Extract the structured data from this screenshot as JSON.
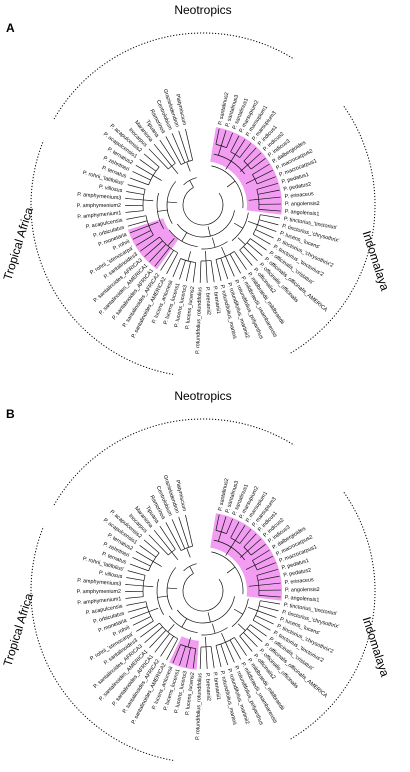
{
  "panels": [
    {
      "label": "A",
      "regions": {
        "top": "Neotropics",
        "left": "Tropical Africa",
        "right": "Indomalaya"
      },
      "leaves": [
        "P. santalinus2",
        "P. santalinus3",
        "P. santalinus1",
        "P. marsupium2",
        "P. marsupium1",
        "P. marsupium3",
        "P. indicus1",
        "P. indicus2",
        "P. indicus3",
        "P. dalbergioides",
        "P. macrocarpus2",
        "P. macrocarpus1",
        "P. pedatus1",
        "P. pedatus2",
        "P. erinaceus",
        "P. angolensis2",
        "P. angolensis1",
        "P. tinctorius_'tinctorius'",
        "P. tinctorius_'chrysothrix'",
        "P. lucens_'lucens'",
        "P. tinctorius_'chrysothrix'2",
        "P. tinctorius_'tinctorius'2",
        "P. officinalis_'cristatus'",
        "P. officinalis_officinalis_AMERICA",
        "P. officinalis_officinalis",
        "P. officinalis2",
        "P. mildbraedii_mildbraedii",
        "P. mildbraedii_usambarensis",
        "P. rotundifolius_polyanthus",
        "P. rotundifolius_martinii2",
        "P. rotundifolius_martinii",
        "P. brenanii1",
        "P. brenanii2",
        "P. rotundifolius_rotundifolius",
        "P. lucens_lucens2",
        "P. lucens_lucens3",
        "P. lucens_lucens1",
        "P. lucens_antunesii",
        "P. santalinoides_AMERICA2",
        "P. santalinoides_AFRICA2",
        "P. santalinoides_AFRICA1",
        "P. santalinoides_AMERICA1",
        "P. santalinoides_AFRICA3",
        "P. santalinoides3",
        "P. rohrii_'stenocarpa'",
        "P. rohrii",
        "P. monetaria",
        "P. orbiculatus",
        "P. acapulcensis",
        "P. amphymenium1",
        "P. amphymenium2",
        "P. amphymenium3",
        "P. villosus",
        "P. rohrii_'latifolius'",
        "P. ternatus",
        "P. zehntneri",
        "P. ternatus2",
        "P. acapulcensis1",
        "P. acapulcensis2",
        "Inocarpus",
        "Maraniona",
        "Tipuana",
        "Ramorinoa",
        "Centrolobium",
        "Grazielodendron",
        "Platymiscium"
      ]
    },
    {
      "label": "B",
      "regions": {
        "top": "Neotropics",
        "left": "Tropical Africa",
        "right": "Indomalaya"
      },
      "leaves": [
        "P. santalinus2",
        "P. santalinus3",
        "P. santalinus1",
        "P. marsupium2",
        "P. marsupium1",
        "P. marsupium3",
        "P. indicus1",
        "P. indicus2",
        "P. indicus3",
        "P. dalbergioides",
        "P. macrocarpus2",
        "P. macrocarpus1",
        "P. pedatus1",
        "P. pedatus2",
        "P. erinaceus",
        "P. angolensis2",
        "P. angolensis1",
        "P. tinctorius_'tinctorius'",
        "P. tinctorius_'chrysothrix'",
        "P. lucens_'lucens'",
        "P. tinctorius_'chrysothrix'2",
        "P. tinctorius_'tinctorius'2",
        "P. officinalis_'cristatus'",
        "P. officinalis_officinalis_AMERICA",
        "P. officinalis_officinalis",
        "P. officinalis2",
        "P. mildbraedii_mildbraedii",
        "P. mildbraedii_usambarensis",
        "P. rotundifolius_polyanthus",
        "P. rotundifolius_martinii2",
        "P. rotundifolius_martinii",
        "P. brenanii1",
        "P. brenanii2",
        "P. rotundifolius_rotundifolius",
        "P. lucens_lucens2",
        "P. lucens_lucens3",
        "P. lucens_lucens1",
        "P. lucens_antunesii",
        "P. santalinoides_AMERICA2",
        "P. santalinoides_AFRICA2",
        "P. santalinoides_AFRICA1",
        "P. santalinoides_AMERICA1",
        "P. santalinoides_AFRICA3",
        "P. santalinoides3",
        "P. rohrii_'stenocarpa'",
        "P. rohrii",
        "P. monetaria",
        "P. orbiculatus",
        "P. acapulcensis",
        "P. amphymenium1",
        "P. amphymenium2",
        "P. amphymenium3",
        "P. villosus",
        "P. rohrii_'latifolius'",
        "P. ternatus",
        "P. zehntneri",
        "P. ternatus2",
        "P. acapulcensis1",
        "P. acapulcensis2",
        "Inocarpus",
        "Maraniona",
        "Tipuana",
        "Ramorinoa",
        "Centrolobium",
        "Grazielodendron",
        "Platymiscium"
      ]
    }
  ],
  "colors": {
    "highlight": "#f29cf2",
    "branch": "#111111",
    "text": "#000000"
  }
}
